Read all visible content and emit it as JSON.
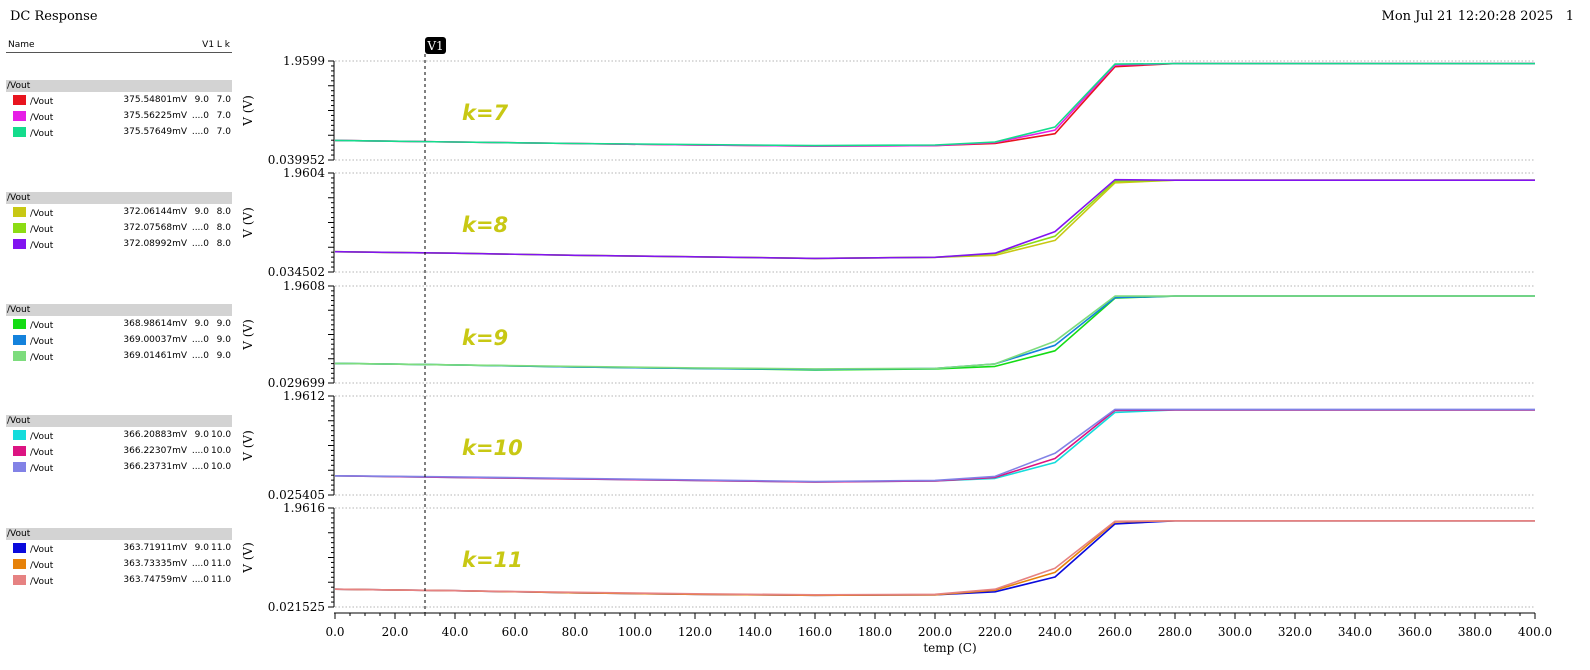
{
  "header": {
    "title": "DC Response",
    "timestamp": "Mon Jul 21 12:20:28 2025",
    "page": "1"
  },
  "legend": {
    "name_header": "Name",
    "cols_header": "V1 L k",
    "groups": [
      {
        "label": "/Vout",
        "rows": [
          {
            "name": "/Vout",
            "value": "375.54801mV",
            "v1": "9.0",
            "k": "7.0",
            "color": "#e8141e"
          },
          {
            "name": "/Vout",
            "value": "375.56225mV",
            "v1": "....0",
            "k": "7.0",
            "color": "#e61ee6"
          },
          {
            "name": "/Vout",
            "value": "375.57649mV",
            "v1": "....0",
            "k": "7.0",
            "color": "#14dc8c"
          }
        ]
      },
      {
        "label": "/Vout",
        "rows": [
          {
            "name": "/Vout",
            "value": "372.06144mV",
            "v1": "9.0",
            "k": "8.0",
            "color": "#c8c814"
          },
          {
            "name": "/Vout",
            "value": "372.07568mV",
            "v1": "....0",
            "k": "8.0",
            "color": "#8cdc14"
          },
          {
            "name": "/Vout",
            "value": "372.08992mV",
            "v1": "....0",
            "k": "8.0",
            "color": "#8214f0"
          }
        ]
      },
      {
        "label": "/Vout",
        "rows": [
          {
            "name": "/Vout",
            "value": "368.98614mV",
            "v1": "9.0",
            "k": "9.0",
            "color": "#14dc14"
          },
          {
            "name": "/Vout",
            "value": "369.00037mV",
            "v1": "....0",
            "k": "9.0",
            "color": "#1482dc"
          },
          {
            "name": "/Vout",
            "value": "369.01461mV",
            "v1": "....0",
            "k": "9.0",
            "color": "#7ddc7d"
          }
        ]
      },
      {
        "label": "/Vout",
        "rows": [
          {
            "name": "/Vout",
            "value": "366.20883mV",
            "v1": "9.0",
            "k": "10.0",
            "color": "#14dcdc"
          },
          {
            "name": "/Vout",
            "value": "366.22307mV",
            "v1": "....0",
            "k": "10.0",
            "color": "#dc1482"
          },
          {
            "name": "/Vout",
            "value": "366.23731mV",
            "v1": "....0",
            "k": "10.0",
            "color": "#8282e6"
          }
        ]
      },
      {
        "label": "/Vout",
        "rows": [
          {
            "name": "/Vout",
            "value": "363.71911mV",
            "v1": "9.0",
            "k": "11.0",
            "color": "#0a0adc"
          },
          {
            "name": "/Vout",
            "value": "363.73335mV",
            "v1": "....0",
            "k": "11.0",
            "color": "#e6820a"
          },
          {
            "name": "/Vout",
            "value": "363.74759mV",
            "v1": "....0",
            "k": "11.0",
            "color": "#e68282"
          }
        ]
      }
    ]
  },
  "chart_data": {
    "type": "line",
    "xlabel": "temp (C)",
    "xlim": [
      0,
      400
    ],
    "xticks": [
      "0.0",
      "20.0",
      "40.0",
      "60.0",
      "80.0",
      "100.0",
      "120.0",
      "140.0",
      "160.0",
      "180.0",
      "200.0",
      "220.0",
      "240.0",
      "260.0",
      "280.0",
      "300.0",
      "320.0",
      "340.0",
      "360.0",
      "380.0",
      "400.0"
    ],
    "marker": {
      "label": "V1",
      "x": 30
    },
    "annotation_color": "#c8c814",
    "x": [
      0,
      40,
      80,
      120,
      160,
      200,
      220,
      240,
      260,
      280,
      400
    ],
    "subplots": [
      {
        "annotation": "k=7",
        "ylabel": "V (V)",
        "ymax_label": "1.9599",
        "ymin_label": "0.039952",
        "ylim": [
          0.039952,
          1.9599
        ],
        "series": [
          {
            "color": "#e8141e",
            "values": [
              0.42,
              0.39,
              0.36,
              0.33,
              0.31,
              0.32,
              0.36,
              0.55,
              1.85,
              1.91,
              1.91
            ]
          },
          {
            "color": "#e61ee6",
            "values": [
              0.42,
              0.39,
              0.36,
              0.33,
              0.31,
              0.32,
              0.38,
              0.62,
              1.88,
              1.91,
              1.91
            ]
          },
          {
            "color": "#14dc8c",
            "values": [
              0.42,
              0.39,
              0.36,
              0.34,
              0.32,
              0.33,
              0.39,
              0.68,
              1.9,
              1.91,
              1.91
            ]
          }
        ]
      },
      {
        "annotation": "k=8",
        "ylabel": "V (V)",
        "ymax_label": "1.9604",
        "ymin_label": "0.034502",
        "ylim": [
          0.034502,
          1.9604
        ],
        "series": [
          {
            "color": "#c8c814",
            "values": [
              0.43,
              0.4,
              0.36,
              0.33,
              0.3,
              0.32,
              0.36,
              0.65,
              1.77,
              1.82,
              1.82
            ]
          },
          {
            "color": "#8cdc14",
            "values": [
              0.43,
              0.4,
              0.36,
              0.33,
              0.3,
              0.32,
              0.39,
              0.73,
              1.8,
              1.82,
              1.82
            ]
          },
          {
            "color": "#8214f0",
            "values": [
              0.43,
              0.4,
              0.36,
              0.33,
              0.3,
              0.32,
              0.4,
              0.82,
              1.83,
              1.82,
              1.82
            ]
          }
        ]
      },
      {
        "annotation": "k=9",
        "ylabel": "V (V)",
        "ymax_label": "1.9608",
        "ymin_label": "0.029699",
        "ylim": [
          0.029699,
          1.9608
        ],
        "series": [
          {
            "color": "#14dc14",
            "values": [
              0.42,
              0.39,
              0.35,
              0.32,
              0.29,
              0.31,
              0.36,
              0.67,
              1.72,
              1.76,
              1.76
            ]
          },
          {
            "color": "#1482dc",
            "values": [
              0.42,
              0.39,
              0.35,
              0.32,
              0.3,
              0.32,
              0.41,
              0.78,
              1.73,
              1.76,
              1.76
            ]
          },
          {
            "color": "#7ddc7d",
            "values": [
              0.42,
              0.39,
              0.36,
              0.33,
              0.31,
              0.32,
              0.41,
              0.86,
              1.76,
              1.76,
              1.76
            ]
          }
        ]
      },
      {
        "annotation": "k=10",
        "ylabel": "V (V)",
        "ymax_label": "1.9612",
        "ymin_label": "0.025405",
        "ylim": [
          0.025405,
          1.9612
        ],
        "series": [
          {
            "color": "#14dc14",
            "values": [
              0.4,
              0.37,
              0.34,
              0.31,
              0.28,
              0.29,
              0.34,
              0.66,
              1.64,
              1.69,
              1.69
            ],
            "hidden": true
          },
          {
            "color": "#14dcdc",
            "values": [
              0.4,
              0.37,
              0.34,
              0.31,
              0.28,
              0.3,
              0.35,
              0.66,
              1.64,
              1.69,
              1.69
            ]
          },
          {
            "color": "#dc1482",
            "values": [
              0.4,
              0.37,
              0.34,
              0.31,
              0.28,
              0.3,
              0.37,
              0.74,
              1.68,
              1.69,
              1.69
            ]
          },
          {
            "color": "#8282e6",
            "values": [
              0.4,
              0.38,
              0.35,
              0.32,
              0.29,
              0.31,
              0.39,
              0.84,
              1.7,
              1.7,
              1.7
            ]
          }
        ]
      },
      {
        "annotation": "k=11",
        "ylabel": "V (V)",
        "ymax_label": "1.9616",
        "ymin_label": "0.021525",
        "ylim": [
          0.021525,
          1.9616
        ],
        "series": [
          {
            "color": "#0a0adc",
            "values": [
              0.37,
              0.34,
              0.3,
              0.27,
              0.25,
              0.26,
              0.32,
              0.61,
              1.65,
              1.71,
              1.71
            ]
          },
          {
            "color": "#e6820a",
            "values": [
              0.37,
              0.34,
              0.3,
              0.27,
              0.25,
              0.26,
              0.35,
              0.7,
              1.69,
              1.71,
              1.71
            ]
          },
          {
            "color": "#e68282",
            "values": [
              0.37,
              0.34,
              0.31,
              0.28,
              0.26,
              0.27,
              0.37,
              0.78,
              1.7,
              1.71,
              1.71
            ]
          }
        ]
      }
    ]
  }
}
